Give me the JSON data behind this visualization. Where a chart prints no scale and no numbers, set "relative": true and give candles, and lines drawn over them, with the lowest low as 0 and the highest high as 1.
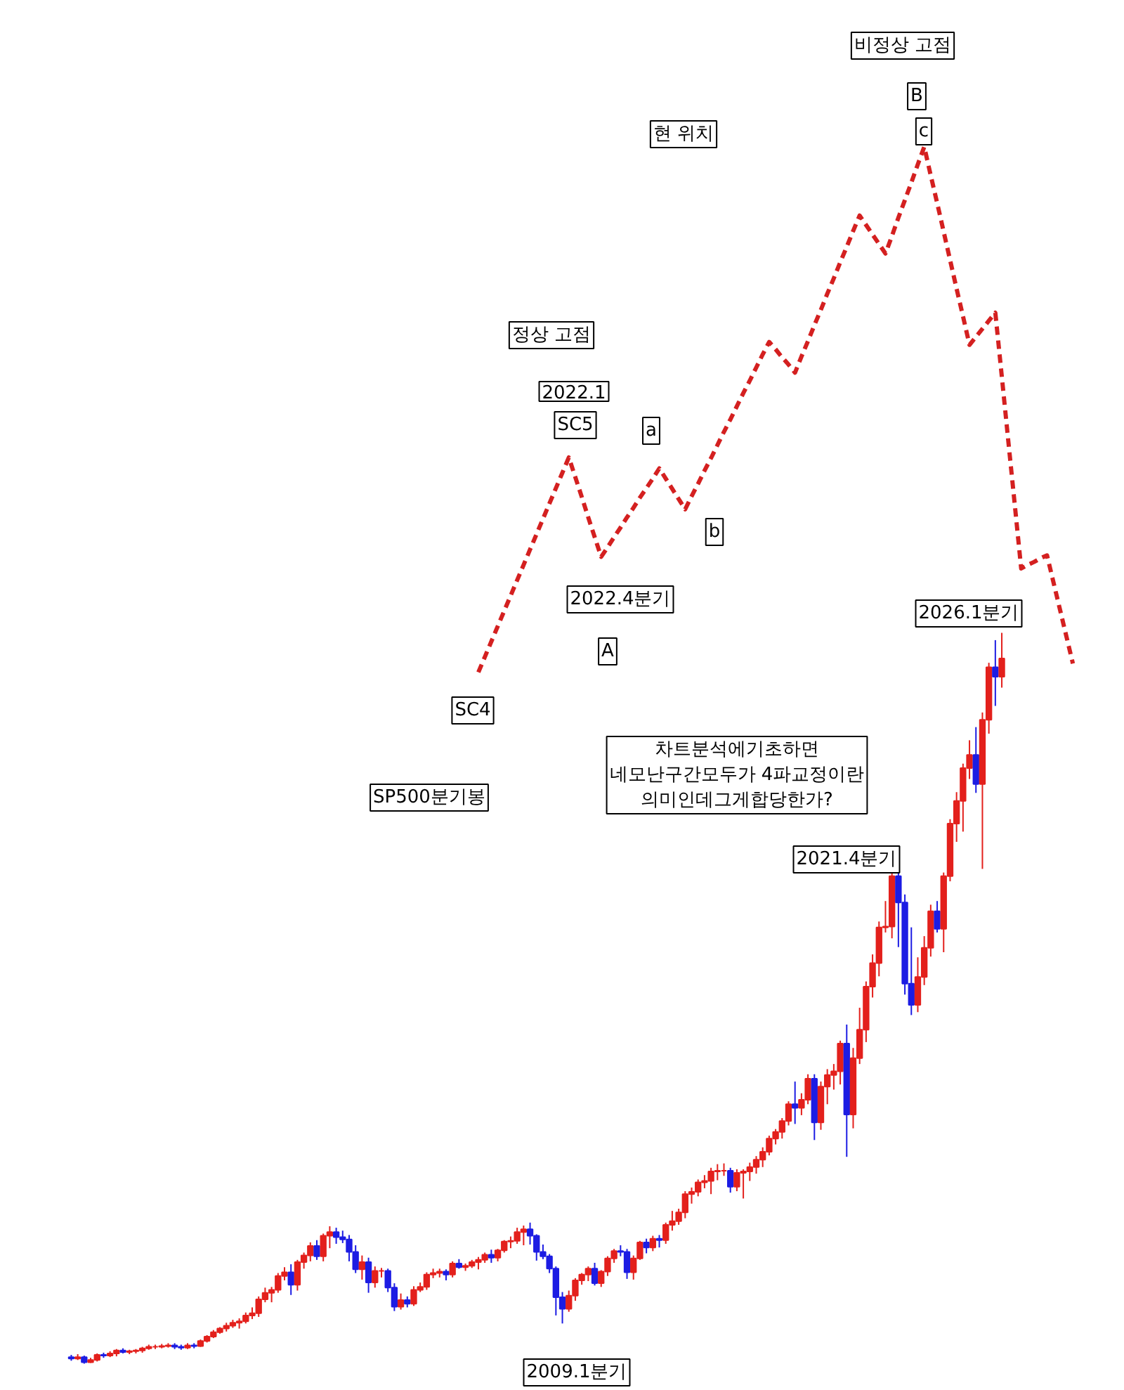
{
  "chart_data": {
    "type": "candlestick",
    "relative": true,
    "tick_labels": false,
    "grid": false,
    "categories": [
      null,
      null,
      null,
      null,
      null,
      null,
      null,
      null,
      null,
      null,
      null,
      null,
      null,
      null,
      null,
      null,
      null,
      null,
      null,
      null,
      null,
      null,
      null,
      null,
      null,
      null,
      null,
      null,
      null,
      null,
      null,
      null,
      null,
      null,
      null,
      null,
      null,
      null,
      null,
      null,
      null,
      null,
      null,
      null,
      null,
      null,
      null,
      null,
      null,
      null,
      null,
      null,
      null,
      null,
      null,
      null,
      null,
      null,
      null,
      null,
      null,
      null,
      null,
      null,
      null,
      null,
      null,
      null,
      null,
      null,
      null,
      null,
      null,
      null,
      null,
      null,
      null,
      null,
      null,
      null,
      null,
      null,
      null,
      null,
      null,
      null,
      null,
      null,
      null,
      null,
      null,
      null,
      null,
      null,
      null,
      null,
      null,
      null,
      null,
      null,
      null,
      null,
      null,
      null,
      null,
      null,
      null,
      null,
      null,
      null,
      null,
      null,
      null,
      null,
      null,
      null,
      null,
      null,
      null,
      null,
      null,
      null,
      null,
      null,
      null,
      null,
      null,
      null,
      null,
      null,
      null,
      null,
      null,
      null,
      null,
      null,
      null,
      null,
      null,
      null,
      null,
      null,
      null,
      null,
      null,
      null,
      null,
      null,
      null,
      null,
      null,
      null,
      null,
      null,
      null,
      null
    ],
    "colors": [
      "#1c1ce3",
      "#e3201c",
      "#1c1ce3",
      "#e3201c",
      "#e3201c",
      "#1c1ce3",
      "#e3201c",
      "#e3201c",
      "#1c1ce3",
      "#e3201c",
      "#e3201c",
      "#e3201c",
      "#e3201c",
      "#e3201c",
      "#e3201c",
      "#e3201c",
      "#1c1ce3",
      "#1c1ce3",
      "#e3201c",
      "#1c1ce3",
      "#e3201c",
      "#e3201c",
      "#e3201c",
      "#e3201c",
      "#e3201c",
      "#e3201c",
      "#e3201c",
      "#e3201c",
      "#e3201c",
      "#e3201c",
      "#e3201c",
      "#e3201c",
      "#e3201c",
      "#e3201c",
      "#1c1ce3",
      "#e3201c",
      "#e3201c",
      "#e3201c",
      "#1c1ce3",
      "#e3201c",
      "#e3201c",
      "#1c1ce3",
      "#1c1ce3",
      "#1c1ce3",
      "#1c1ce3",
      "#e3201c",
      "#1c1ce3",
      "#e3201c",
      "#e3201c",
      "#1c1ce3",
      "#1c1ce3",
      "#e3201c",
      "#1c1ce3",
      "#e3201c",
      "#e3201c",
      "#e3201c",
      "#e3201c",
      "#e3201c",
      "#1c1ce3",
      "#e3201c",
      "#1c1ce3",
      "#e3201c",
      "#e3201c",
      "#e3201c",
      "#e3201c",
      "#1c1ce3",
      "#e3201c",
      "#e3201c",
      "#e3201c",
      "#e3201c",
      "#e3201c",
      "#1c1ce3",
      "#1c1ce3",
      "#1c1ce3",
      "#1c1ce3",
      "#1c1ce3",
      "#1c1ce3",
      "#e3201c",
      "#e3201c",
      "#e3201c",
      "#e3201c",
      "#1c1ce3",
      "#e3201c",
      "#e3201c",
      "#e3201c",
      "#1c1ce3",
      "#1c1ce3",
      "#e3201c",
      "#e3201c",
      "#1c1ce3",
      "#e3201c",
      "#1c1ce3",
      "#e3201c",
      "#e3201c",
      "#e3201c",
      "#e3201c",
      "#e3201c",
      "#e3201c",
      "#e3201c",
      "#e3201c",
      "#e3201c",
      "#e3201c",
      "#1c1ce3",
      "#e3201c",
      "#e3201c",
      "#e3201c",
      "#e3201c",
      "#e3201c",
      "#e3201c",
      "#e3201c",
      "#e3201c",
      "#e3201c",
      "#1c1ce3",
      "#e3201c",
      "#e3201c",
      "#1c1ce3",
      "#e3201c",
      "#e3201c",
      "#e3201c",
      "#e3201c",
      "#1c1ce3",
      "#e3201c",
      "#e3201c",
      "#e3201c",
      "#e3201c",
      "#e3201c",
      "#e3201c",
      "#e3201c",
      "#1c1ce3",
      "#1c1ce3",
      "#1c1ce3",
      "#e3201c",
      "#e3201c",
      "#e3201c",
      "#1c1ce3",
      "#e3201c",
      "#e3201c",
      "#e3201c",
      "#e3201c",
      "#e3201c",
      "#1c1ce3",
      "#e3201c",
      "#e3201c",
      "#1c1ce3",
      "#e3201c",
      null,
      null,
      null,
      null,
      null,
      null,
      null,
      null,
      null,
      null,
      null
    ],
    "ohlc": [
      [
        0.009,
        0.012,
        0.004,
        0.007
      ],
      [
        0.007,
        0.013,
        0.005,
        0.009
      ],
      [
        0.009,
        0.011,
        0.0,
        0.002
      ],
      [
        0.002,
        0.008,
        0.001,
        0.005
      ],
      [
        0.005,
        0.014,
        0.003,
        0.012
      ],
      [
        0.012,
        0.015,
        0.008,
        0.011
      ],
      [
        0.011,
        0.017,
        0.009,
        0.014
      ],
      [
        0.014,
        0.02,
        0.01,
        0.018
      ],
      [
        0.018,
        0.021,
        0.014,
        0.016
      ],
      [
        0.016,
        0.019,
        0.013,
        0.017
      ],
      [
        0.017,
        0.02,
        0.014,
        0.018
      ],
      [
        0.018,
        0.023,
        0.015,
        0.021
      ],
      [
        0.021,
        0.026,
        0.019,
        0.023
      ],
      [
        0.023,
        0.026,
        0.02,
        0.023
      ],
      [
        0.023,
        0.027,
        0.021,
        0.024
      ],
      [
        0.024,
        0.028,
        0.022,
        0.025
      ],
      [
        0.025,
        0.028,
        0.02,
        0.023
      ],
      [
        0.023,
        0.026,
        0.019,
        0.022
      ],
      [
        0.022,
        0.028,
        0.02,
        0.025
      ],
      [
        0.025,
        0.028,
        0.021,
        0.024
      ],
      [
        0.024,
        0.033,
        0.023,
        0.031
      ],
      [
        0.031,
        0.039,
        0.029,
        0.037
      ],
      [
        0.037,
        0.046,
        0.035,
        0.043
      ],
      [
        0.043,
        0.05,
        0.041,
        0.048
      ],
      [
        0.048,
        0.056,
        0.044,
        0.052
      ],
      [
        0.052,
        0.06,
        0.049,
        0.056
      ],
      [
        0.056,
        0.062,
        0.048,
        0.058
      ],
      [
        0.058,
        0.07,
        0.055,
        0.066
      ],
      [
        0.066,
        0.077,
        0.061,
        0.069
      ],
      [
        0.069,
        0.092,
        0.064,
        0.088
      ],
      [
        0.088,
        0.104,
        0.084,
        0.097
      ],
      [
        0.097,
        0.105,
        0.084,
        0.101
      ],
      [
        0.101,
        0.124,
        0.097,
        0.12
      ],
      [
        0.12,
        0.132,
        0.114,
        0.125
      ],
      [
        0.125,
        0.136,
        0.094,
        0.108
      ],
      [
        0.108,
        0.142,
        0.1,
        0.139
      ],
      [
        0.139,
        0.152,
        0.13,
        0.148
      ],
      [
        0.148,
        0.166,
        0.14,
        0.161
      ],
      [
        0.161,
        0.169,
        0.142,
        0.147
      ],
      [
        0.147,
        0.178,
        0.14,
        0.175
      ],
      [
        0.175,
        0.188,
        0.158,
        0.18
      ],
      [
        0.18,
        0.186,
        0.164,
        0.173
      ],
      [
        0.173,
        0.182,
        0.165,
        0.17
      ],
      [
        0.17,
        0.176,
        0.14,
        0.153
      ],
      [
        0.153,
        0.162,
        0.124,
        0.129
      ],
      [
        0.129,
        0.148,
        0.115,
        0.139
      ],
      [
        0.139,
        0.145,
        0.097,
        0.111
      ],
      [
        0.111,
        0.133,
        0.104,
        0.127
      ],
      [
        0.127,
        0.131,
        0.118,
        0.127
      ],
      [
        0.127,
        0.13,
        0.098,
        0.104
      ],
      [
        0.104,
        0.11,
        0.072,
        0.078
      ],
      [
        0.078,
        0.096,
        0.074,
        0.087
      ],
      [
        0.087,
        0.092,
        0.077,
        0.082
      ],
      [
        0.082,
        0.106,
        0.079,
        0.101
      ],
      [
        0.101,
        0.111,
        0.098,
        0.105
      ],
      [
        0.105,
        0.125,
        0.101,
        0.122
      ],
      [
        0.122,
        0.13,
        0.117,
        0.124
      ],
      [
        0.124,
        0.13,
        0.118,
        0.126
      ],
      [
        0.126,
        0.129,
        0.114,
        0.122
      ],
      [
        0.122,
        0.14,
        0.118,
        0.137
      ],
      [
        0.137,
        0.143,
        0.13,
        0.132
      ],
      [
        0.132,
        0.137,
        0.127,
        0.134
      ],
      [
        0.134,
        0.142,
        0.131,
        0.139
      ],
      [
        0.139,
        0.146,
        0.129,
        0.142
      ],
      [
        0.142,
        0.152,
        0.138,
        0.149
      ],
      [
        0.149,
        0.156,
        0.138,
        0.145
      ],
      [
        0.145,
        0.157,
        0.14,
        0.155
      ],
      [
        0.155,
        0.169,
        0.152,
        0.167
      ],
      [
        0.167,
        0.174,
        0.158,
        0.168
      ],
      [
        0.168,
        0.186,
        0.164,
        0.18
      ],
      [
        0.18,
        0.189,
        0.162,
        0.184
      ],
      [
        0.184,
        0.193,
        0.163,
        0.175
      ],
      [
        0.175,
        0.177,
        0.141,
        0.153
      ],
      [
        0.153,
        0.163,
        0.143,
        0.147
      ],
      [
        0.147,
        0.15,
        0.124,
        0.13
      ],
      [
        0.13,
        0.133,
        0.066,
        0.091
      ],
      [
        0.091,
        0.098,
        0.055,
        0.075
      ],
      [
        0.075,
        0.1,
        0.071,
        0.093
      ],
      [
        0.093,
        0.117,
        0.086,
        0.114
      ],
      [
        0.114,
        0.124,
        0.108,
        0.122
      ],
      [
        0.122,
        0.133,
        0.113,
        0.13
      ],
      [
        0.13,
        0.138,
        0.107,
        0.11
      ],
      [
        0.11,
        0.128,
        0.105,
        0.126
      ],
      [
        0.126,
        0.147,
        0.12,
        0.144
      ],
      [
        0.144,
        0.157,
        0.138,
        0.154
      ],
      [
        0.154,
        0.162,
        0.147,
        0.153
      ],
      [
        0.153,
        0.157,
        0.116,
        0.125
      ],
      [
        0.125,
        0.148,
        0.115,
        0.144
      ],
      [
        0.144,
        0.168,
        0.142,
        0.166
      ],
      [
        0.166,
        0.171,
        0.151,
        0.159
      ],
      [
        0.159,
        0.175,
        0.154,
        0.171
      ],
      [
        0.171,
        0.176,
        0.159,
        0.169
      ],
      [
        0.169,
        0.193,
        0.164,
        0.19
      ],
      [
        0.19,
        0.209,
        0.182,
        0.195
      ],
      [
        0.195,
        0.212,
        0.19,
        0.207
      ],
      [
        0.207,
        0.236,
        0.199,
        0.232
      ],
      [
        0.232,
        0.241,
        0.219,
        0.235
      ],
      [
        0.235,
        0.252,
        0.229,
        0.248
      ],
      [
        0.248,
        0.258,
        0.24,
        0.25
      ],
      [
        0.25,
        0.268,
        0.232,
        0.263
      ],
      [
        0.263,
        0.273,
        0.251,
        0.264
      ],
      [
        0.264,
        0.274,
        0.257,
        0.264
      ],
      [
        0.264,
        0.268,
        0.234,
        0.242
      ],
      [
        0.242,
        0.266,
        0.236,
        0.261
      ],
      [
        0.261,
        0.266,
        0.226,
        0.263
      ],
      [
        0.263,
        0.275,
        0.25,
        0.269
      ],
      [
        0.269,
        0.284,
        0.26,
        0.279
      ],
      [
        0.279,
        0.296,
        0.269,
        0.29
      ],
      [
        0.29,
        0.312,
        0.285,
        0.308
      ],
      [
        0.308,
        0.321,
        0.3,
        0.317
      ],
      [
        0.317,
        0.336,
        0.308,
        0.332
      ],
      [
        0.332,
        0.359,
        0.326,
        0.355
      ],
      [
        0.355,
        0.386,
        0.328,
        0.35
      ],
      [
        0.35,
        0.37,
        0.34,
        0.361
      ],
      [
        0.361,
        0.396,
        0.355,
        0.39
      ],
      [
        0.39,
        0.396,
        0.306,
        0.33
      ],
      [
        0.33,
        0.386,
        0.32,
        0.379
      ],
      [
        0.379,
        0.403,
        0.355,
        0.395
      ],
      [
        0.395,
        0.41,
        0.375,
        0.4
      ],
      [
        0.4,
        0.442,
        0.382,
        0.438
      ],
      [
        0.438,
        0.464,
        0.283,
        0.341
      ],
      [
        0.341,
        0.432,
        0.322,
        0.418
      ],
      [
        0.418,
        0.487,
        0.41,
        0.457
      ],
      [
        0.457,
        0.523,
        0.44,
        0.516
      ],
      [
        0.516,
        0.56,
        0.501,
        0.548
      ],
      [
        0.548,
        0.605,
        0.53,
        0.597
      ],
      [
        0.597,
        0.633,
        0.59,
        0.598
      ],
      [
        0.598,
        0.673,
        0.582,
        0.667
      ],
      [
        0.667,
        0.676,
        0.57,
        0.631
      ],
      [
        0.631,
        0.642,
        0.505,
        0.52
      ],
      [
        0.52,
        0.597,
        0.477,
        0.491
      ],
      [
        0.491,
        0.556,
        0.481,
        0.529
      ],
      [
        0.529,
        0.585,
        0.518,
        0.569
      ],
      [
        0.569,
        0.628,
        0.557,
        0.619
      ],
      [
        0.619,
        0.633,
        0.59,
        0.595
      ],
      [
        0.595,
        0.672,
        0.563,
        0.667
      ],
      [
        0.667,
        0.745,
        0.66,
        0.739
      ],
      [
        0.739,
        0.782,
        0.714,
        0.77
      ],
      [
        0.77,
        0.821,
        0.728,
        0.815
      ],
      [
        0.815,
        0.853,
        0.8,
        0.833
      ],
      [
        0.833,
        0.871,
        0.781,
        0.793
      ],
      [
        0.793,
        0.891,
        0.677,
        0.881
      ],
      [
        0.881,
        0.959,
        0.862,
        0.953
      ],
      [
        0.953,
        0.99,
        0.9,
        0.94
      ],
      [
        0.94,
        1.0,
        0.925,
        0.965
      ],
      null,
      null,
      null,
      null,
      null,
      null,
      null,
      null,
      null,
      null,
      null
    ],
    "series": [
      {
        "type": "line",
        "color": "#d42020",
        "line_style": "dashed",
        "values": [
          null,
          null,
          null,
          null,
          null,
          null,
          null,
          null,
          null,
          null,
          null,
          null,
          null,
          null,
          null,
          null,
          null,
          null,
          null,
          null,
          null,
          null,
          null,
          null,
          null,
          null,
          null,
          null,
          null,
          null,
          null,
          null,
          null,
          null,
          null,
          null,
          null,
          null,
          null,
          null,
          null,
          null,
          null,
          null,
          null,
          null,
          null,
          null,
          null,
          null,
          null,
          null,
          null,
          null,
          null,
          null,
          null,
          null,
          null,
          null,
          null,
          null,
          null,
          0.946,
          0.967,
          0.988,
          1.009,
          1.03,
          1.051,
          1.072,
          1.093,
          1.114,
          1.135,
          1.156,
          1.177,
          1.198,
          1.219,
          1.24,
          1.213,
          1.186,
          1.158,
          1.131,
          1.104,
          1.117,
          1.131,
          1.144,
          1.158,
          1.171,
          1.185,
          1.198,
          1.211,
          1.225,
          1.211,
          1.197,
          1.183,
          1.169,
          1.187,
          1.204,
          1.222,
          1.239,
          1.257,
          1.275,
          1.292,
          1.31,
          1.328,
          1.345,
          1.363,
          1.381,
          1.398,
          1.388,
          1.377,
          1.367,
          1.356,
          1.378,
          1.399,
          1.421,
          1.442,
          1.464,
          1.485,
          1.507,
          1.528,
          1.55,
          1.571,
          1.558,
          1.545,
          1.532,
          1.519,
          1.543,
          1.568,
          1.592,
          1.616,
          1.641,
          1.665,
          1.626,
          1.588,
          1.549,
          1.51,
          1.471,
          1.433,
          1.394,
          1.405,
          1.416,
          1.427,
          1.438,
          1.351,
          1.263,
          1.176,
          1.088,
          1.093,
          1.097,
          1.102,
          1.106,
          1.069,
          1.032,
          0.995,
          0.958
        ]
      }
    ],
    "annotations": [
      "SP500분기봉",
      "SC4",
      "2022.4분기",
      "A",
      "SC5",
      "2022.1",
      "정상 고점",
      "a",
      "b",
      "현 위치",
      "비정상 고점",
      "B",
      "c",
      "2026.1분기",
      "2021.4분기",
      "차트분석에기초하면\n네모난구간모두가 4파교정이란\n의미인데그게합당한가?",
      "2009.1분기"
    ]
  }
}
